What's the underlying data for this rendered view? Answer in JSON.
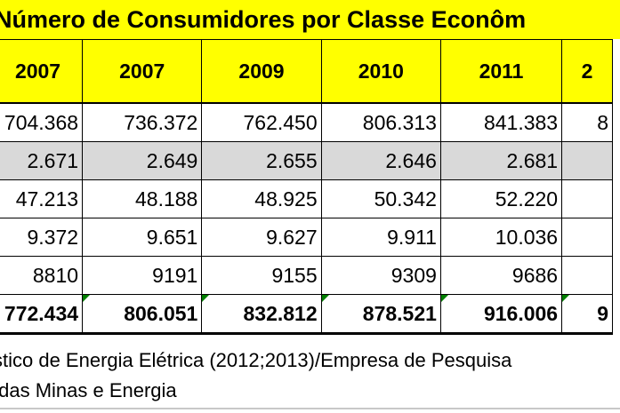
{
  "title": "Número de Consumidores por Classe Econôm",
  "table": {
    "headers": [
      "2007",
      "2007",
      "2009",
      "2010",
      "2011",
      "2"
    ],
    "rows": [
      {
        "cells": [
          "704.368",
          "736.372",
          "762.450",
          "806.313",
          "841.383",
          "8"
        ]
      },
      {
        "cells": [
          "2.671",
          "2.649",
          "2.655",
          "2.646",
          "2.681",
          ""
        ]
      },
      {
        "cells": [
          "47.213",
          "48.188",
          "48.925",
          "50.342",
          "52.220",
          ""
        ]
      },
      {
        "cells": [
          "9.372",
          "9.651",
          "9.627",
          "9.911",
          "10.036",
          ""
        ]
      },
      {
        "cells": [
          "8810",
          "9191",
          "9155",
          "9309",
          "9686",
          ""
        ]
      },
      {
        "cells": [
          "772.434",
          "806.051",
          "832.812",
          "878.521",
          "916.006",
          "9"
        ]
      }
    ]
  },
  "source": {
    "line1": "stico de Energia Elétrica (2012;2013)/Empresa de Pesquisa",
    "line2": " das Minas e Energia"
  },
  "colors": {
    "header_bg": "#ffff00",
    "gray_row": "#d9d9d9",
    "marker": "#008000"
  }
}
